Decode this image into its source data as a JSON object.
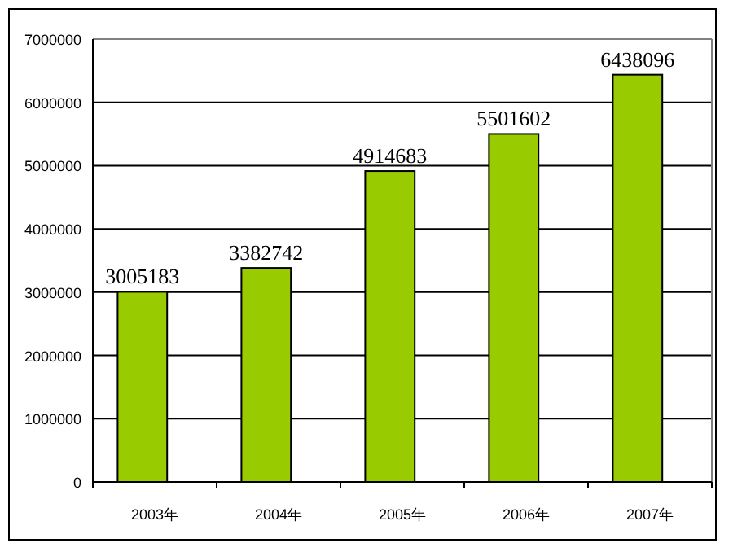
{
  "chart_data": {
    "type": "bar",
    "categories": [
      "2003年",
      "2004年",
      "2005年",
      "2006年",
      "2007年"
    ],
    "values": [
      3005183,
      3382742,
      4914683,
      5501602,
      6438096
    ],
    "color": "#99cc00",
    "ylim": [
      0,
      7000000
    ],
    "yticks": [
      0,
      1000000,
      2000000,
      3000000,
      4000000,
      5000000,
      6000000,
      7000000
    ],
    "grid": "y",
    "data_labels": true
  }
}
